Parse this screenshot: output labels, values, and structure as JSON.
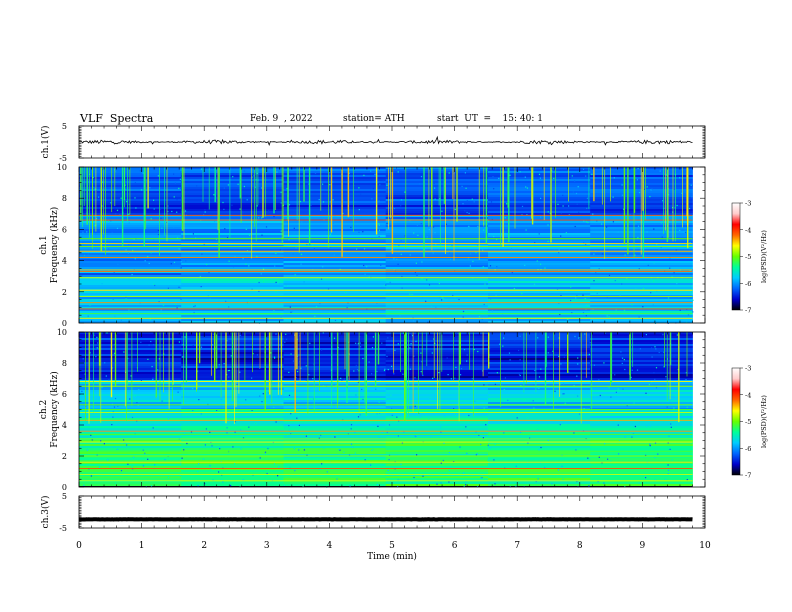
{
  "header": {
    "title": "VLF  Spectra",
    "date": "Feb. 9  , 2022",
    "station": "station= ATH",
    "start_ut": "start  UT  =    15: 40: 1"
  },
  "colormap": {
    "stops": [
      "#000000",
      "#0000cc",
      "#0066ff",
      "#00ccff",
      "#00ff99",
      "#66ff00",
      "#ffff00",
      "#ff6600",
      "#ff0000",
      "#ffcccc",
      "#ffffff"
    ]
  },
  "chart_data": [
    {
      "type": "line",
      "panel": "ch1",
      "ylabel": "ch.1(V)",
      "ylim": [
        -5,
        5
      ],
      "yticks": [
        "5",
        "-5"
      ],
      "xlim": [
        0,
        10
      ],
      "baseline_v": 0,
      "noise_amplitude_v": 0.6,
      "x_end_min": 9.8
    },
    {
      "type": "heatmap",
      "panel": "ch1-spectrogram",
      "ylabel_line1": "ch.1",
      "ylabel_line2": "Frequency  (kHz)",
      "ylim": [
        0,
        10
      ],
      "yticks": [
        "0",
        "2",
        "4",
        "6",
        "8",
        "10"
      ],
      "xlim": [
        0,
        10
      ],
      "x_end_min": 9.8,
      "colorbar_label": "log(PSD)(V²/Hz)",
      "colorbar_ticks": [
        "-3",
        "-4",
        "-5",
        "-6",
        "-7"
      ],
      "colorbar_range": [
        -7,
        -3
      ]
    },
    {
      "type": "heatmap",
      "panel": "ch2-spectrogram",
      "ylabel_line1": "ch.2",
      "ylabel_line2": "Frequency  (kHz)",
      "ylim": [
        0,
        10
      ],
      "yticks": [
        "0",
        "2",
        "4",
        "6",
        "8",
        "10"
      ],
      "xlim": [
        0,
        10
      ],
      "x_end_min": 9.8,
      "colorbar_label": "log(PSD)(V²/Hz)",
      "colorbar_ticks": [
        "-3",
        "-4",
        "-5",
        "-6",
        "-7"
      ],
      "colorbar_range": [
        -7,
        -3
      ]
    },
    {
      "type": "line",
      "panel": "ch3",
      "ylabel": "ch.3(V)",
      "ylim": [
        -5,
        5
      ],
      "yticks": [
        "5",
        "-5"
      ],
      "xlim": [
        0,
        10
      ],
      "baseline_v": -2.3,
      "noise_amplitude_v": 0.05,
      "x_end_min": 9.8,
      "xlabel": "Time  (min)",
      "xticks": [
        "0",
        "1",
        "2",
        "3",
        "4",
        "5",
        "6",
        "7",
        "8",
        "9",
        "10"
      ]
    }
  ]
}
